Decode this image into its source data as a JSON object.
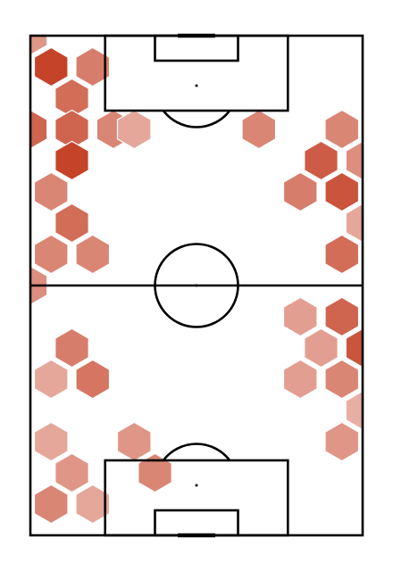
{
  "chart_data": {
    "type": "heatmap",
    "title": "",
    "description_style": "hexbin density over a vertical football pitch",
    "pitch": {
      "length": 120,
      "width": 80,
      "orientation": "vertical"
    },
    "colors": {
      "line": "#000000",
      "background": "#ffffff",
      "low": "#f7e1dc",
      "high": "#c23b20",
      "hex_edge": "#ffffff"
    },
    "hexbin": {
      "radius_units": 5,
      "bins": [
        {
          "x": 0,
          "y": 120,
          "v": 0.45
        },
        {
          "x": 5,
          "y": 112.5,
          "v": 0.95
        },
        {
          "x": 15,
          "y": 112.5,
          "v": 0.6
        },
        {
          "x": 10,
          "y": 105,
          "v": 0.7
        },
        {
          "x": 0,
          "y": 97.5,
          "v": 0.75
        },
        {
          "x": 10,
          "y": 97.5,
          "v": 0.75
        },
        {
          "x": 20,
          "y": 97.5,
          "v": 0.55
        },
        {
          "x": 25,
          "y": 97.5,
          "v": 0.35
        },
        {
          "x": 10,
          "y": 90,
          "v": 0.95
        },
        {
          "x": 5,
          "y": 82.5,
          "v": 0.55
        },
        {
          "x": 10,
          "y": 75,
          "v": 0.7
        },
        {
          "x": 5,
          "y": 67.5,
          "v": 0.55
        },
        {
          "x": 15,
          "y": 67.5,
          "v": 0.55
        },
        {
          "x": 0,
          "y": 60,
          "v": 0.5
        },
        {
          "x": 55,
          "y": 97.5,
          "v": 0.55
        },
        {
          "x": 75,
          "y": 97.5,
          "v": 0.55
        },
        {
          "x": 70,
          "y": 90,
          "v": 0.8
        },
        {
          "x": 80,
          "y": 90,
          "v": 0.5
        },
        {
          "x": 65,
          "y": 82.5,
          "v": 0.6
        },
        {
          "x": 75,
          "y": 82.5,
          "v": 0.85
        },
        {
          "x": 80,
          "y": 75,
          "v": 0.35
        },
        {
          "x": 75,
          "y": 67.5,
          "v": 0.7
        },
        {
          "x": 65,
          "y": 52.5,
          "v": 0.4
        },
        {
          "x": 75,
          "y": 52.5,
          "v": 0.75
        },
        {
          "x": 70,
          "y": 45,
          "v": 0.4
        },
        {
          "x": 80,
          "y": 45,
          "v": 0.85
        },
        {
          "x": 65,
          "y": 37.5,
          "v": 0.4
        },
        {
          "x": 75,
          "y": 37.5,
          "v": 0.55
        },
        {
          "x": 80,
          "y": 30,
          "v": 0.3
        },
        {
          "x": 75,
          "y": 22.5,
          "v": 0.45
        },
        {
          "x": 10,
          "y": 45,
          "v": 0.6
        },
        {
          "x": 5,
          "y": 37.5,
          "v": 0.35
        },
        {
          "x": 15,
          "y": 37.5,
          "v": 0.65
        },
        {
          "x": 5,
          "y": 22.5,
          "v": 0.35
        },
        {
          "x": 25,
          "y": 22.5,
          "v": 0.45
        },
        {
          "x": 10,
          "y": 15,
          "v": 0.45
        },
        {
          "x": 30,
          "y": 15,
          "v": 0.55
        },
        {
          "x": 5,
          "y": 7.5,
          "v": 0.55
        },
        {
          "x": 15,
          "y": 7.5,
          "v": 0.35
        }
      ]
    },
    "axes": {
      "visible": false,
      "grid": false,
      "legend": "none"
    }
  }
}
